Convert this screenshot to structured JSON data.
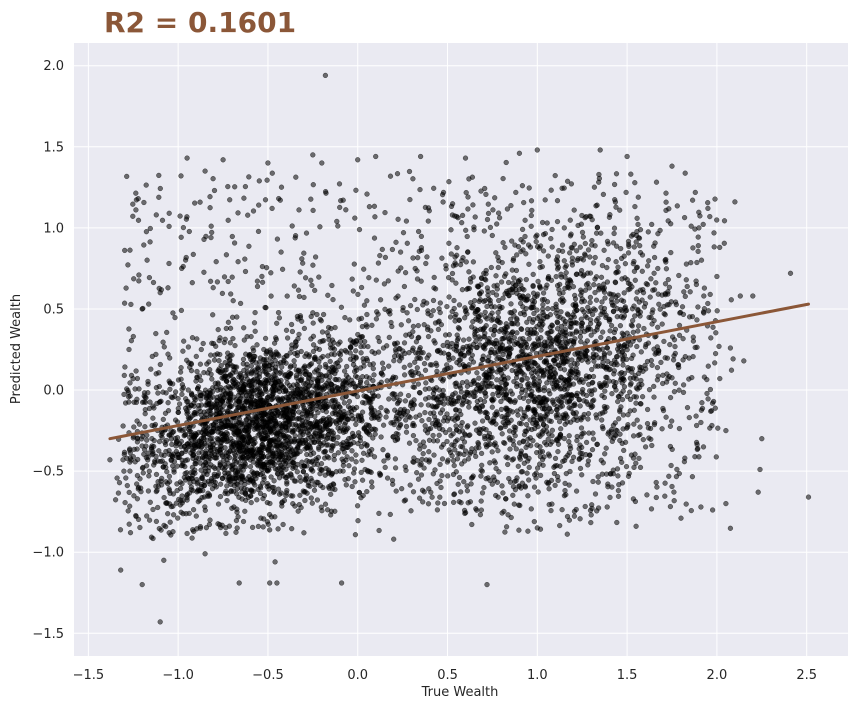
{
  "chart_data": {
    "type": "scatter",
    "title": "R2 = 0.1601",
    "title_color": "#8B5738",
    "xlabel": "True Wealth",
    "ylabel": "Predicted Wealth",
    "xlim": [
      -1.58,
      2.73
    ],
    "ylim": [
      -1.64,
      2.14
    ],
    "xticks": [
      -1.5,
      -1.0,
      -0.5,
      0.0,
      0.5,
      1.0,
      1.5,
      2.0,
      2.5
    ],
    "xtick_labels": [
      "−1.5",
      "−1.0",
      "−0.5",
      "0.0",
      "0.5",
      "1.0",
      "1.5",
      "2.0",
      "2.5"
    ],
    "yticks": [
      -1.5,
      -1.0,
      -0.5,
      0.0,
      0.5,
      1.0,
      1.5,
      2.0
    ],
    "ytick_labels": [
      "−1.5",
      "−1.0",
      "−0.5",
      "0.0",
      "0.5",
      "1.0",
      "1.5",
      "2.0"
    ],
    "grid": true,
    "background_color": "#EAEAF2",
    "point_color": "#000000",
    "line_color": "#8B5738",
    "fit_line": {
      "x": [
        -1.38,
        2.51
      ],
      "y": [
        -0.3,
        0.53
      ]
    },
    "series": [
      {
        "points": [
          [
            -0.18,
            1.94
          ],
          [
            2.51,
            -0.66
          ],
          [
            2.41,
            0.72
          ],
          [
            2.25,
            -0.3
          ],
          [
            2.24,
            -0.49
          ],
          [
            2.23,
            -0.63
          ],
          [
            2.13,
            0.58
          ],
          [
            2.1,
            1.16
          ],
          [
            2.05,
            -0.7
          ],
          [
            -1.1,
            -1.43
          ],
          [
            -1.2,
            -1.2
          ],
          [
            -1.32,
            -1.11
          ],
          [
            -1.08,
            -1.05
          ],
          [
            -0.66,
            -1.19
          ],
          [
            -0.49,
            -1.19
          ],
          [
            -0.45,
            -1.19
          ],
          [
            -0.09,
            -1.19
          ],
          [
            0.72,
            -1.2
          ],
          [
            -0.46,
            -1.06
          ],
          [
            -1.05,
            1.09
          ],
          [
            -0.95,
            1.43
          ],
          [
            -0.85,
            1.35
          ],
          [
            -0.75,
            1.42
          ],
          [
            -0.5,
            1.4
          ],
          [
            -0.25,
            1.45
          ],
          [
            0.0,
            1.42
          ],
          [
            0.1,
            1.44
          ],
          [
            0.35,
            1.44
          ],
          [
            0.6,
            1.43
          ],
          [
            0.9,
            1.46
          ],
          [
            1.0,
            1.48
          ],
          [
            1.35,
            1.48
          ],
          [
            1.5,
            1.44
          ],
          [
            1.75,
            1.38
          ],
          [
            1.95,
            1.12
          ],
          [
            -1.38,
            -0.43
          ],
          [
            -1.3,
            0.09
          ],
          [
            -1.25,
            0.33
          ],
          [
            -1.2,
            0.5
          ],
          [
            -1.1,
            0.6
          ],
          [
            -0.98,
            0.75
          ],
          [
            -1.05,
            -0.88
          ],
          [
            -0.85,
            -1.01
          ],
          [
            -0.3,
            -0.88
          ],
          [
            0.2,
            -0.92
          ],
          [
            1.0,
            -0.85
          ],
          [
            1.3,
            -0.77
          ],
          [
            1.55,
            -0.84
          ],
          [
            1.8,
            -0.79
          ],
          [
            2.05,
            -0.25
          ],
          [
            2.15,
            0.18
          ],
          [
            2.2,
            0.58
          ],
          [
            2.0,
            0.7
          ],
          [
            1.9,
            1.0
          ],
          [
            -0.2,
            1.4
          ]
        ]
      }
    ]
  }
}
